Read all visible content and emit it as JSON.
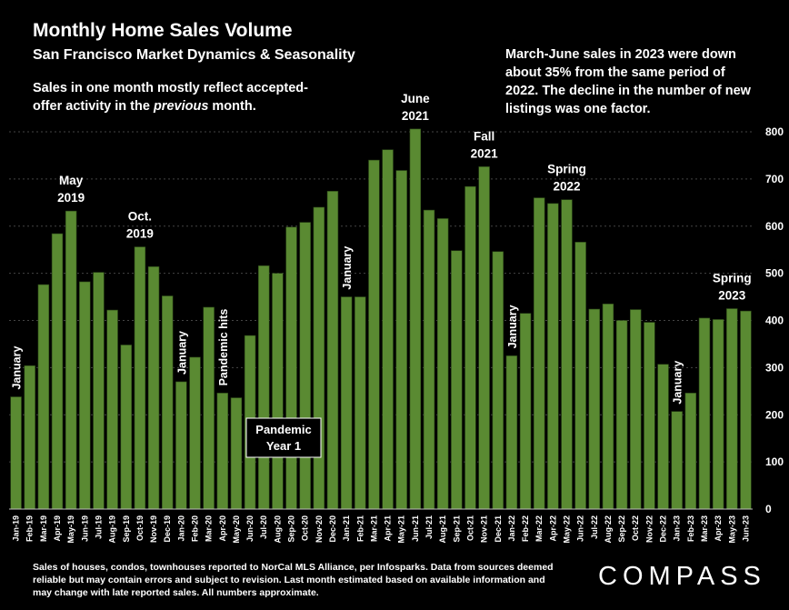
{
  "header": {
    "title": "Monthly Home Sales Volume",
    "subtitle": "San Francisco Market Dynamics & Seasonality"
  },
  "notes": {
    "left_pre": "Sales in one month mostly reflect accepted-offer activity in the ",
    "left_em": "previous",
    "left_post": " month.",
    "right": "March-June sales in 2023 were down about 35% from the same period of 2022.  The decline in the number of new listings was one factor."
  },
  "footer": {
    "text": "Sales of houses, condos, townhouses reported to NorCal MLS Alliance, per Infosparks. Data from sources deemed reliable but may contain errors and subject to revision. Last month estimated based on available information and may change with late reported sales. All numbers approximate."
  },
  "brand": {
    "logo": "COMPASS"
  },
  "colors": {
    "bar": "#5a8a32",
    "background": "#000000",
    "text": "#ffffff"
  },
  "chart_data": {
    "type": "bar",
    "ylim": [
      0,
      800
    ],
    "yticks": [
      0,
      100,
      200,
      300,
      400,
      500,
      600,
      700,
      800
    ],
    "y_axis_side": "right",
    "categories": [
      "Jan-19",
      "Feb-19",
      "Mar-19",
      "Apr-19",
      "May-19",
      "Jun-19",
      "Jul-19",
      "Aug-19",
      "Sep-19",
      "Oct-19",
      "Nov-19",
      "Dec-19",
      "Jan-20",
      "Feb-20",
      "Mar-20",
      "Apr-20",
      "May-20",
      "Jun-20",
      "Jul-20",
      "Aug-20",
      "Sep-20",
      "Oct-20",
      "Nov-20",
      "Dec-20",
      "Jan-21",
      "Feb-21",
      "Mar-21",
      "Apr-21",
      "May-21",
      "Jun-21",
      "Jul-21",
      "Aug-21",
      "Sep-21",
      "Oct-21",
      "Nov-21",
      "Dec-21",
      "Jan-22",
      "Feb-22",
      "Mar-22",
      "Apr-22",
      "May-22",
      "Jun-22",
      "Jul-22",
      "Aug-22",
      "Sep-22",
      "Oct-22",
      "Nov-22",
      "Dec-22",
      "Jan-23",
      "Feb-23",
      "Mar-23",
      "Apr-23",
      "May-23",
      "Jun-23"
    ],
    "values": [
      238,
      304,
      476,
      584,
      632,
      482,
      502,
      422,
      348,
      556,
      514,
      452,
      270,
      322,
      428,
      246,
      236,
      368,
      516,
      500,
      598,
      608,
      640,
      674,
      450,
      450,
      740,
      762,
      718,
      806,
      634,
      616,
      548,
      684,
      726,
      546,
      325,
      415,
      660,
      648,
      656,
      566,
      424,
      435,
      400,
      423,
      396,
      307,
      207,
      246,
      405,
      402,
      425,
      420
    ],
    "annotations": [
      {
        "index": 0,
        "lines": [
          "January"
        ],
        "vertical": true
      },
      {
        "index": 4,
        "lines": [
          "May",
          "2019"
        ]
      },
      {
        "index": 9,
        "lines": [
          "Oct.",
          "2019"
        ]
      },
      {
        "index": 12,
        "lines": [
          "January"
        ],
        "vertical": true
      },
      {
        "index": 15,
        "lines": [
          "Pandemic hits"
        ],
        "vertical": true
      },
      {
        "index": 24,
        "lines": [
          "January"
        ],
        "vertical": true
      },
      {
        "index": 29,
        "lines": [
          "June",
          "2021"
        ]
      },
      {
        "index": 34,
        "lines": [
          "Fall",
          "2021"
        ]
      },
      {
        "index": 36,
        "lines": [
          "January"
        ],
        "vertical": true
      },
      {
        "index": 40,
        "lines": [
          "Spring",
          "2022"
        ]
      },
      {
        "index": 48,
        "lines": [
          "January"
        ],
        "vertical": true
      },
      {
        "index": 52,
        "lines": [
          "Spring",
          "2023"
        ]
      }
    ],
    "boxed_label": [
      "Pandemic",
      "Year 1"
    ]
  }
}
